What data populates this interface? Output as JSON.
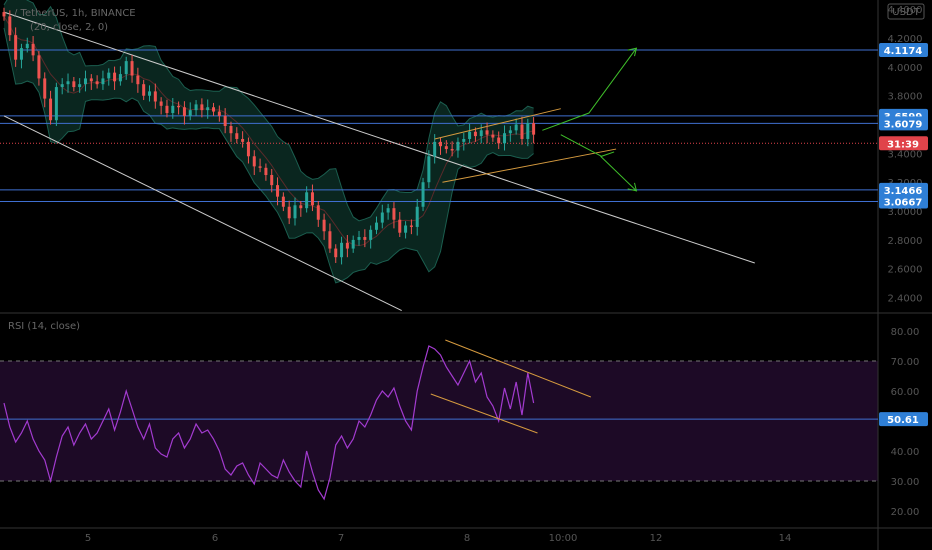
{
  "colors": {
    "background": "#000000",
    "up_candle": "#26a69a",
    "down_candle": "#ef5350",
    "bollinger": "#1b5e4f",
    "bollinger_fill": "#0b2a22",
    "level_line": "#3f6fd1",
    "level_tag": "#2f7fd6",
    "price_tag": "#e0434a",
    "channel": "#cccccc",
    "wedge": "#d59a3f",
    "projection": "#3fbf2a",
    "rsi_line": "#a33bd0",
    "rsi_band": "#1d0a26"
  },
  "header": {
    "symbol_line": "/ TetherUS, 1h, BINANCE",
    "indicator_line": "(20, close, 2, 0)",
    "currency_badge": "USDT"
  },
  "price_pane": {
    "axis_ticks": [
      "4.4000",
      "4.2000",
      "4.0000",
      "3.8000",
      "3.6000",
      "3.4000",
      "3.2000",
      "3.0000",
      "2.8000",
      "2.6000",
      "2.4000"
    ],
    "levels": [
      {
        "label": "4.1174",
        "value": 4.1174
      },
      {
        "label": "3.6599",
        "value": 3.6599
      },
      {
        "label": "3.6079",
        "value": 3.6079
      },
      {
        "label": "3.1466",
        "value": 3.1466
      },
      {
        "label": "3.0667",
        "value": 3.0667
      }
    ],
    "countdown_tag": {
      "label": "31:39",
      "value": 3.47
    }
  },
  "rsi_pane": {
    "legend": "RSI (14, close)",
    "axis_ticks": [
      "80.00",
      "70.00",
      "60.00",
      "50.00",
      "40.00",
      "30.00",
      "20.00"
    ],
    "upper_band": 70,
    "lower_band": 30,
    "level": {
      "label": "50.61",
      "value": 50.61
    }
  },
  "time_axis": {
    "ticks": [
      "5",
      "6",
      "7",
      "8",
      "10:00",
      "12",
      "14"
    ]
  },
  "chart_data": {
    "type": "line",
    "title": "/ TetherUS, 1h, BINANCE",
    "price_axis_range": [
      2.3,
      4.45
    ],
    "rsi_axis_range": [
      15,
      85
    ],
    "price_series": {
      "name": "price",
      "x": [
        0,
        6,
        12,
        18,
        24,
        30,
        36,
        42,
        48,
        54,
        60,
        66,
        72,
        78,
        84,
        90,
        96,
        102,
        108,
        114,
        120,
        126,
        132,
        138,
        144,
        150,
        156,
        162,
        168,
        174,
        180,
        186,
        192,
        198,
        204,
        210,
        216,
        222,
        228,
        234,
        240,
        246,
        252,
        258,
        264,
        270,
        276,
        282,
        288,
        294,
        300,
        306,
        312,
        318,
        324,
        330,
        336,
        342,
        348,
        354,
        360,
        366,
        372,
        378,
        384,
        390,
        396,
        402,
        408,
        414,
        420,
        426,
        432,
        438,
        444,
        450,
        456,
        462,
        468,
        474,
        480,
        486,
        492,
        498,
        504,
        510,
        516,
        522,
        528,
        534,
        540,
        546
      ],
      "y": [
        4.35,
        4.22,
        4.05,
        4.13,
        4.16,
        4.08,
        3.92,
        3.78,
        3.63,
        3.86,
        3.88,
        3.9,
        3.86,
        3.88,
        3.92,
        3.9,
        3.88,
        3.92,
        3.96,
        3.9,
        3.95,
        4.04,
        3.94,
        3.88,
        3.8,
        3.83,
        3.76,
        3.73,
        3.68,
        3.73,
        3.72,
        3.66,
        3.7,
        3.74,
        3.7,
        3.72,
        3.69,
        3.66,
        3.59,
        3.54,
        3.5,
        3.48,
        3.38,
        3.31,
        3.3,
        3.25,
        3.18,
        3.1,
        3.03,
        2.95,
        3.04,
        3.02,
        3.13,
        3.04,
        2.94,
        2.86,
        2.74,
        2.68,
        2.78,
        2.74,
        2.8,
        2.82,
        2.8,
        2.87,
        2.92,
        2.99,
        3.02,
        2.94,
        2.85,
        2.9,
        2.89,
        3.03,
        3.2,
        3.38,
        3.48,
        3.45,
        3.43,
        3.42,
        3.48,
        3.5,
        3.55,
        3.52,
        3.56,
        3.53,
        3.51,
        3.47,
        3.54,
        3.56,
        3.6,
        3.5,
        3.61,
        3.53
      ]
    },
    "rsi_series": {
      "name": "RSI",
      "x": [
        0,
        6,
        12,
        18,
        24,
        30,
        36,
        42,
        48,
        54,
        60,
        66,
        72,
        78,
        84,
        90,
        96,
        102,
        108,
        114,
        120,
        126,
        132,
        138,
        144,
        150,
        156,
        162,
        168,
        174,
        180,
        186,
        192,
        198,
        204,
        210,
        216,
        222,
        228,
        234,
        240,
        246,
        252,
        258,
        264,
        270,
        276,
        282,
        288,
        294,
        300,
        306,
        312,
        318,
        324,
        330,
        336,
        342,
        348,
        354,
        360,
        366,
        372,
        378,
        384,
        390,
        396,
        402,
        408,
        414,
        420,
        426,
        432,
        438,
        444,
        450,
        456,
        462,
        468,
        474,
        480,
        486,
        492,
        498,
        504,
        510,
        516,
        522,
        528,
        534,
        540,
        546
      ],
      "y": [
        56,
        48,
        43,
        46,
        50,
        44,
        40,
        37,
        30,
        38,
        45,
        48,
        42,
        46,
        49,
        44,
        46,
        50,
        54,
        47,
        53,
        60,
        54,
        48,
        44,
        49,
        41,
        39,
        38,
        44,
        46,
        41,
        44,
        49,
        46,
        47,
        44,
        40,
        34,
        32,
        35,
        36,
        32,
        29,
        36,
        34,
        32,
        31,
        37,
        33,
        30,
        28,
        40,
        33,
        27,
        24,
        31,
        42,
        45,
        41,
        44,
        50,
        48,
        52,
        57,
        60,
        58,
        61,
        55,
        50,
        47,
        60,
        68,
        75,
        74,
        72,
        68,
        65,
        62,
        66,
        70,
        63,
        66,
        58,
        55,
        50,
        61,
        54,
        63,
        52,
        66,
        56
      ]
    },
    "wedge_lines": [
      "rising wedge on price",
      "falling channel on RSI"
    ],
    "grid": false
  }
}
